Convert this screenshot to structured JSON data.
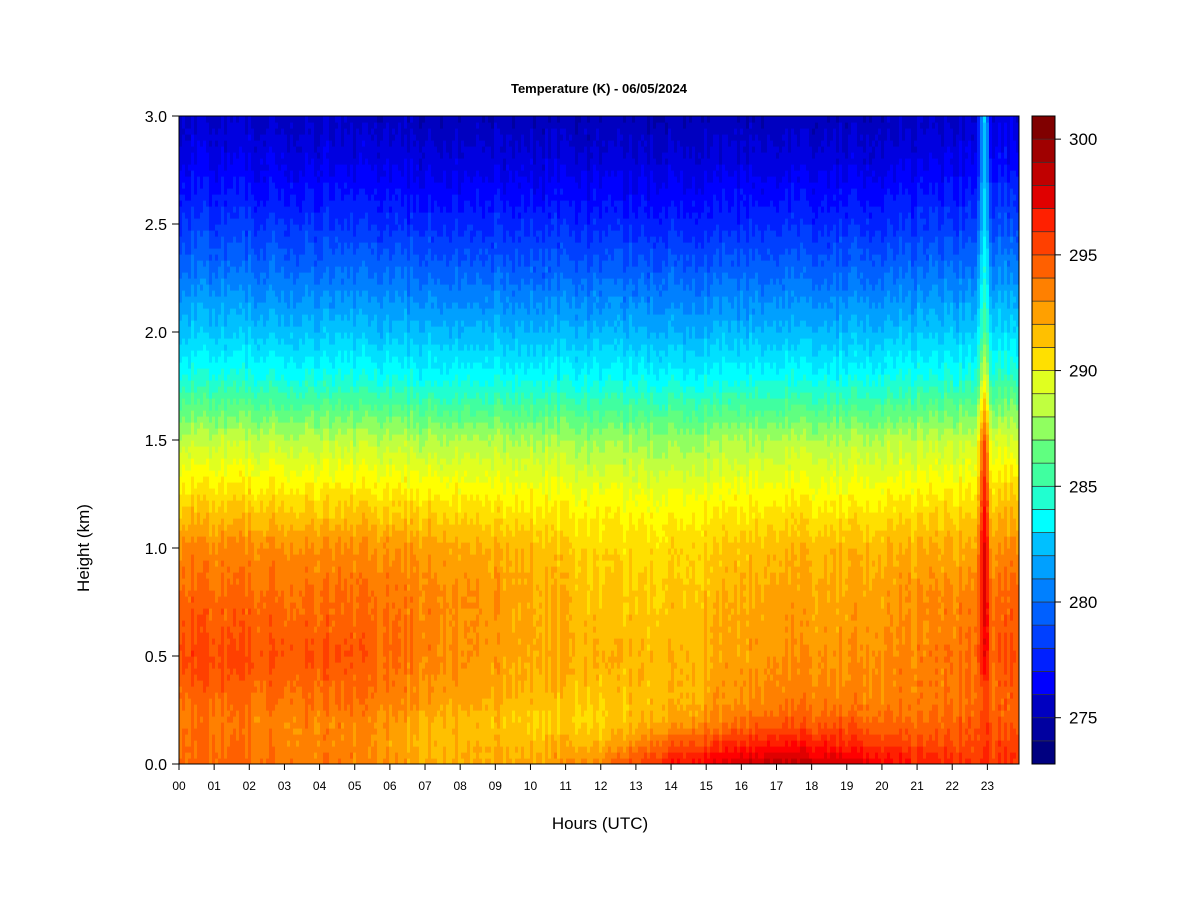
{
  "chart_data": {
    "type": "heatmap",
    "title": "Temperature (K) - 06/05/2024",
    "xlabel": "Hours (UTC)",
    "ylabel": "Height (km)",
    "x_ticks": [
      "00",
      "01",
      "02",
      "03",
      "04",
      "05",
      "06",
      "07",
      "08",
      "09",
      "10",
      "11",
      "12",
      "13",
      "14",
      "15",
      "16",
      "17",
      "18",
      "19",
      "20",
      "21",
      "22",
      "23"
    ],
    "xlim": [
      0,
      23.9
    ],
    "y_ticks": [
      "0.0",
      "0.5",
      "1.0",
      "1.5",
      "2.0",
      "2.5",
      "3.0"
    ],
    "ylim": [
      0,
      3.0
    ],
    "colorbar": {
      "ticks": [
        "275",
        "280",
        "285",
        "290",
        "295",
        "300"
      ],
      "tick_values": [
        275,
        280,
        285,
        290,
        295,
        300
      ],
      "range": [
        273,
        301
      ],
      "levels": 28,
      "colors": [
        "#000080",
        "#0000a0",
        "#0000c0",
        "#0000e0",
        "#0000ff",
        "#0020ff",
        "#0040ff",
        "#0060ff",
        "#0080ff",
        "#00a0ff",
        "#00c0ff",
        "#00e0ff",
        "#00ffff",
        "#20ffd0",
        "#40ffa0",
        "#60ff80",
        "#90ff60",
        "#c0ff40",
        "#e0ff20",
        "#ffff00",
        "#ffe000",
        "#ffc000",
        "#ffa000",
        "#ff8000",
        "#ff6000",
        "#ff4000",
        "#ff2000",
        "#ff0000",
        "#e00000",
        "#c00000",
        "#a00000",
        "#800000"
      ]
    },
    "temperature_profile": {
      "height_km": [
        0.0,
        0.1,
        0.2,
        0.3,
        0.5,
        0.8,
        1.0,
        1.2,
        1.5,
        1.8,
        2.0,
        2.3,
        2.5,
        2.8,
        3.0
      ],
      "by_hour": [
        {
          "hour": 0,
          "t": [
            294.5,
            294.3,
            294.0,
            294.3,
            295.3,
            294.3,
            293.5,
            291.5,
            288.5,
            284.5,
            282.5,
            280.0,
            278.5,
            276.5,
            275.5
          ]
        },
        {
          "hour": 3,
          "t": [
            294.0,
            293.5,
            293.5,
            294.0,
            294.8,
            294.0,
            293.3,
            291.3,
            288.3,
            284.3,
            282.3,
            279.8,
            278.3,
            276.3,
            275.3
          ]
        },
        {
          "hour": 5,
          "t": [
            293.5,
            293.5,
            293.5,
            294.0,
            294.8,
            294.0,
            293.3,
            291.3,
            288.3,
            284.3,
            282.3,
            279.8,
            278.3,
            276.3,
            275.3
          ]
        },
        {
          "hour": 7,
          "t": [
            292.5,
            292.0,
            292.3,
            293.0,
            293.5,
            293.5,
            292.8,
            291.0,
            288.0,
            284.0,
            282.0,
            279.5,
            278.0,
            276.0,
            275.0
          ]
        },
        {
          "hour": 10,
          "t": [
            292.5,
            292.0,
            291.5,
            292.0,
            292.5,
            292.5,
            292.0,
            290.5,
            288.0,
            284.0,
            282.0,
            279.5,
            278.0,
            276.0,
            275.0
          ]
        },
        {
          "hour": 12,
          "t": [
            293.5,
            292.0,
            291.0,
            291.5,
            292.0,
            291.5,
            291.0,
            290.0,
            287.5,
            283.8,
            281.8,
            279.3,
            277.8,
            275.8,
            274.8
          ]
        },
        {
          "hour": 14,
          "t": [
            296.5,
            294.5,
            292.5,
            292.0,
            292.0,
            291.5,
            291.0,
            290.0,
            287.5,
            283.8,
            281.8,
            279.3,
            277.8,
            275.8,
            274.8
          ]
        },
        {
          "hour": 17,
          "t": [
            299.0,
            296.5,
            294.5,
            293.5,
            293.0,
            292.5,
            292.0,
            290.5,
            288.0,
            284.0,
            282.0,
            279.5,
            278.0,
            276.0,
            275.0
          ]
        },
        {
          "hour": 19,
          "t": [
            298.0,
            296.0,
            294.5,
            293.5,
            293.0,
            292.5,
            292.0,
            290.5,
            288.0,
            284.0,
            282.0,
            279.5,
            278.0,
            276.0,
            275.0
          ]
        },
        {
          "hour": 21,
          "t": [
            296.5,
            295.0,
            294.0,
            293.5,
            293.5,
            293.0,
            292.3,
            290.8,
            288.3,
            284.3,
            282.3,
            279.8,
            278.3,
            276.3,
            275.3
          ]
        },
        {
          "hour": 22.7,
          "t": [
            295.5,
            295.0,
            294.5,
            294.0,
            294.0,
            293.5,
            292.5,
            291.0,
            288.5,
            284.5,
            282.5,
            280.0,
            278.5,
            276.5,
            275.5
          ]
        },
        {
          "hour": 22.9,
          "t": [
            296.5,
            296.0,
            296.0,
            295.5,
            298.0,
            298.5,
            298.5,
            297.5,
            296.0,
            290.0,
            287.0,
            285.0,
            284.0,
            283.0,
            283.5
          ]
        },
        {
          "hour": 23.1,
          "t": [
            295.5,
            295.0,
            294.5,
            294.0,
            294.5,
            294.0,
            293.0,
            291.5,
            289.0,
            285.0,
            283.0,
            280.5,
            279.0,
            277.0,
            276.0
          ]
        },
        {
          "hour": 23.9,
          "t": [
            296.0,
            295.5,
            294.5,
            294.5,
            295.0,
            294.5,
            293.5,
            292.0,
            289.0,
            285.0,
            283.0,
            280.5,
            279.0,
            277.0,
            276.0
          ]
        }
      ]
    }
  }
}
